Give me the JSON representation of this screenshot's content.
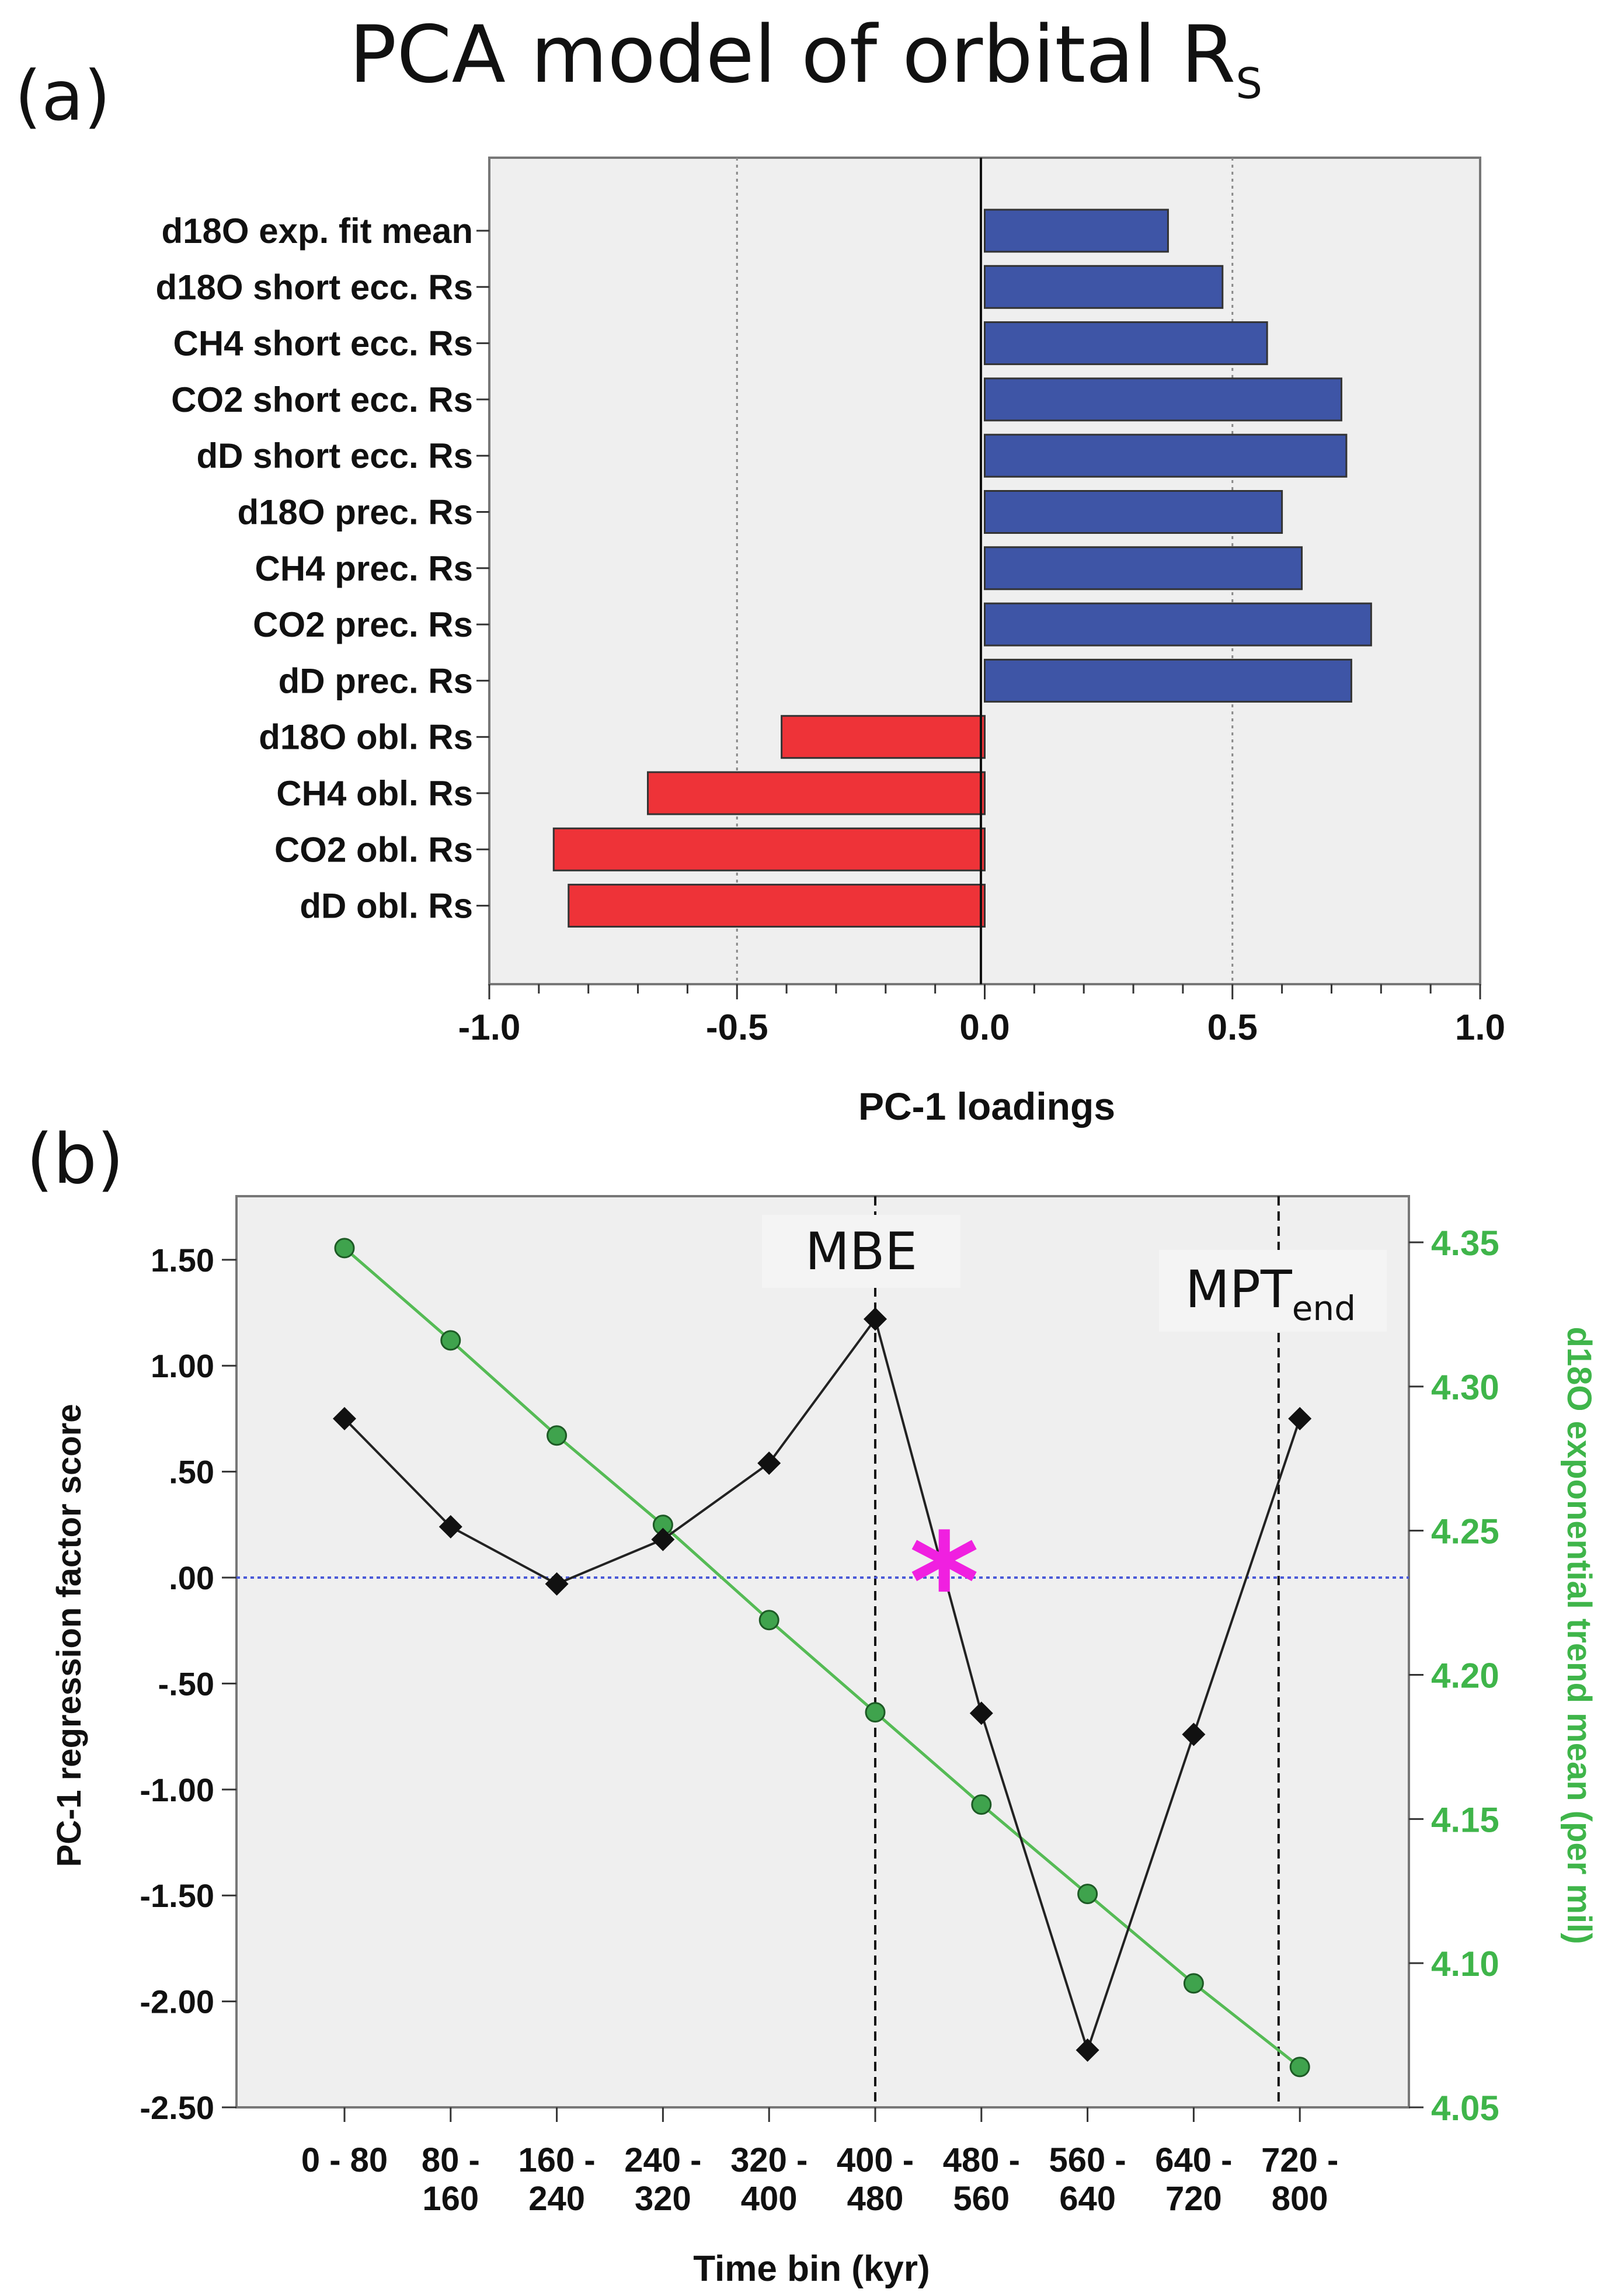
{
  "title": {
    "main": "PCA model of orbital R",
    "subscript": "S"
  },
  "colors": {
    "positive_bar": "#3E55A6",
    "negative_bar": "#EE3338",
    "plot_bg": "#EFEFEF",
    "pc1_line": "#222222",
    "d18o_line": "#55BB55",
    "d18o_marker": "#3FA34D",
    "zero_line": "#4A5AD8",
    "star": "#F020E0",
    "right_axis_text": "#3FB54A"
  },
  "chart_data": [
    {
      "panel": "(a)",
      "type": "bar",
      "orientation": "horizontal",
      "categories": [
        "d18O exp. fit mean",
        "d18O short ecc. Rs",
        "CH4 short ecc. Rs",
        "CO2 short ecc. Rs",
        "dD short ecc. Rs",
        "d18O prec. Rs",
        "CH4 prec. Rs",
        "CO2 prec. Rs",
        "dD prec. Rs",
        "d18O obl. Rs",
        "CH4 obl. Rs",
        "CO2 obl. Rs",
        "dD obl. Rs"
      ],
      "values": [
        0.37,
        0.48,
        0.57,
        0.72,
        0.73,
        0.6,
        0.64,
        0.78,
        0.74,
        -0.41,
        -0.68,
        -0.87,
        -0.84
      ],
      "xlabel": "PC-1 loadings",
      "xlim": [
        -1.0,
        1.0
      ],
      "xticks": [
        "-1.0",
        "-0.5",
        "0.0",
        "0.5",
        "1.0"
      ],
      "reference_lines": [
        -0.5,
        0.5
      ]
    },
    {
      "panel": "(b)",
      "type": "line",
      "categories": [
        "0 - 80",
        "80 - 160",
        "160 - 240",
        "240 - 320",
        "320 - 400",
        "400 - 480",
        "480 - 560",
        "560 - 640",
        "640 - 720",
        "720 - 800"
      ],
      "category_lines": [
        [
          "0 - 80",
          ""
        ],
        [
          "80 -",
          "160"
        ],
        [
          "160 -",
          "240"
        ],
        [
          "240 -",
          "320"
        ],
        [
          "320 -",
          "400"
        ],
        [
          "400 -",
          "480"
        ],
        [
          "480 -",
          "560"
        ],
        [
          "560 -",
          "640"
        ],
        [
          "640 -",
          "720"
        ],
        [
          "720 -",
          "800"
        ]
      ],
      "xlabel": "Time bin (kyr)",
      "ylabel": "PC-1 regression factor score",
      "ylim": [
        -2.5,
        1.8
      ],
      "yticks": [
        "1.50",
        "1.00",
        ".50",
        ".00",
        "-.50",
        "-1.00",
        "-1.50",
        "-2.00",
        "-2.50"
      ],
      "y2label": "d18O exponential trend mean (per mil)",
      "y2lim": [
        4.05,
        4.366
      ],
      "y2ticks": [
        "4.35",
        "4.30",
        "4.25",
        "4.20",
        "4.15",
        "4.10",
        "4.05"
      ],
      "series": [
        {
          "axis": "left",
          "values": [
            0.75,
            0.24,
            -0.03,
            0.18,
            0.54,
            1.22,
            -0.64,
            -2.23,
            -0.74,
            0.75
          ]
        },
        {
          "axis": "right",
          "values": [
            4.348,
            4.316,
            4.283,
            4.252,
            4.219,
            4.187,
            4.155,
            4.124,
            4.093,
            4.064
          ]
        }
      ],
      "annotations": [
        {
          "text": "MBE",
          "at_category_boundary": "400 - 480"
        },
        {
          "text": "MPT",
          "subscript": "end",
          "at_x_index": 8.8
        },
        {
          "text": "*",
          "at_x_index": 5.65,
          "y": 0.0
        }
      ]
    }
  ]
}
